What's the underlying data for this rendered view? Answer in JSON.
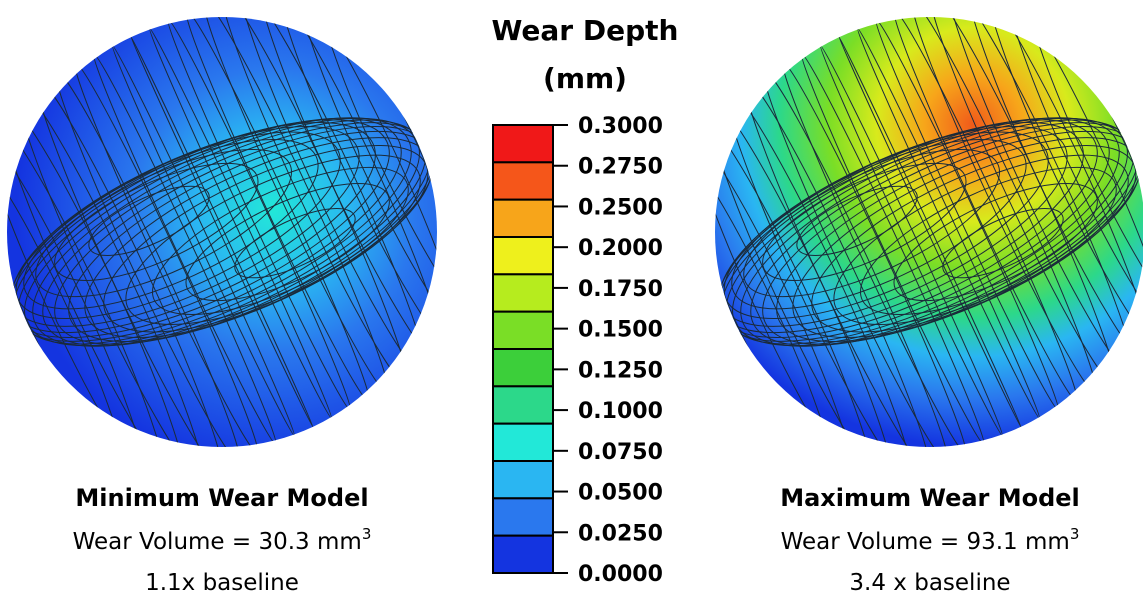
{
  "legend": {
    "title_lines": [
      "Wear Depth",
      "(mm)"
    ],
    "labels": [
      "0.3000",
      "0.2750",
      "0.2500",
      "0.2000",
      "0.1750",
      "0.1500",
      "0.1250",
      "0.1000",
      "0.0750",
      "0.0500",
      "0.0250",
      "0.0000"
    ],
    "colors": [
      "#f01818",
      "#f5561a",
      "#f7a51a",
      "#eef01c",
      "#b6ec1e",
      "#7ade26",
      "#3ccf3a",
      "#2cd88a",
      "#22e8d8",
      "#2ab6f2",
      "#2a78ee",
      "#1434e0"
    ]
  },
  "left": {
    "title": "Minimum Wear Model",
    "volume": "Wear Volume = 30.3 mm",
    "volume_sup": "3",
    "baseline": "1.1x baseline"
  },
  "right": {
    "title": "Maximum Wear Model",
    "volume": "Wear Volume = 93.1 mm",
    "volume_sup": "3",
    "baseline": "3.4 x baseline"
  }
}
